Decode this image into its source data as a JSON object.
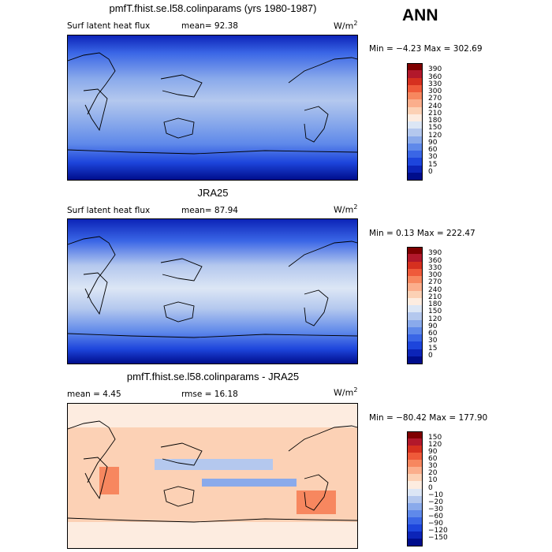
{
  "season": "ANN",
  "units_base": "W/m",
  "units_exp": "2",
  "panels": [
    {
      "title": "pmfT.fhist.se.l58.colinparams (yrs 1980-1987)",
      "left_label": "Surf latent heat flux",
      "stat1": "mean=  92.38",
      "stat2": "",
      "minmax": "Min =  −4.23 Max = 302.69",
      "colorbar": {
        "labels": [
          "390",
          "360",
          "330",
          "300",
          "270",
          "240",
          "210",
          "180",
          "150",
          "120",
          "90",
          "60",
          "30",
          "15",
          "0"
        ],
        "colors": [
          "#7f0000",
          "#b2182b",
          "#d6301f",
          "#ef5a3a",
          "#f7875f",
          "#fbae8c",
          "#fcd1b5",
          "#fdece0",
          "#dce6f5",
          "#b4c8ee",
          "#8aaaeb",
          "#5f89ea",
          "#3a66e6",
          "#1d45dc",
          "#0c24b8",
          "#000d8c"
        ]
      }
    },
    {
      "title": "JRA25",
      "left_label": "Surf latent heat flux",
      "stat1": "mean=  87.94",
      "stat2": "",
      "minmax": "Min =   0.13 Max = 222.47",
      "colorbar": {
        "labels": [
          "390",
          "360",
          "330",
          "300",
          "270",
          "240",
          "210",
          "180",
          "150",
          "120",
          "90",
          "60",
          "30",
          "15",
          "0"
        ],
        "colors": [
          "#7f0000",
          "#b2182b",
          "#d6301f",
          "#ef5a3a",
          "#f7875f",
          "#fbae8c",
          "#fcd1b5",
          "#fdece0",
          "#dce6f5",
          "#b4c8ee",
          "#8aaaeb",
          "#5f89ea",
          "#3a66e6",
          "#1d45dc",
          "#0c24b8",
          "#000d8c"
        ]
      }
    },
    {
      "title": "pmfT.fhist.se.l58.colinparams - JRA25",
      "left_label": "mean =   4.45",
      "stat1": "rmse =  16.18",
      "stat2": "",
      "minmax": "Min = −80.42 Max = 177.90",
      "colorbar": {
        "labels": [
          "150",
          "120",
          "90",
          "60",
          "30",
          "20",
          "10",
          "0",
          "−10",
          "−20",
          "−30",
          "−60",
          "−90",
          "−120",
          "−150"
        ],
        "colors": [
          "#7f0000",
          "#b2182b",
          "#d6301f",
          "#ef5a3a",
          "#f7875f",
          "#fbae8c",
          "#fcd1b5",
          "#fdece0",
          "#dce6f5",
          "#b4c8ee",
          "#8aaaeb",
          "#5f89ea",
          "#3a66e6",
          "#1d45dc",
          "#0c24b8",
          "#000d8c"
        ]
      }
    }
  ]
}
